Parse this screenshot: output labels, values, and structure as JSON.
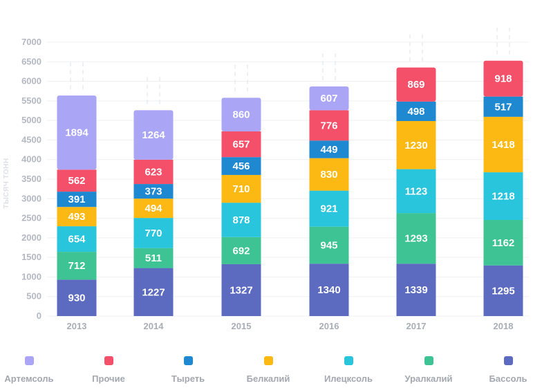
{
  "chart_data": {
    "type": "bar",
    "stacked": true,
    "ylabel": "ТЫСЯЧ ТОНН",
    "ylim": [
      0,
      7000
    ],
    "yticks": [
      0,
      500,
      1000,
      1500,
      2000,
      2500,
      3000,
      3500,
      4000,
      4500,
      5000,
      5500,
      6000,
      6500,
      7000
    ],
    "grid": true,
    "legend_position": "bottom",
    "categories": [
      "2013",
      "2014",
      "2015",
      "2016",
      "2017",
      "2018"
    ],
    "series": [
      {
        "name": "Бассоль",
        "color": "#5c6bc0",
        "values": [
          930,
          1227,
          1327,
          1340,
          1339,
          1295
        ]
      },
      {
        "name": "Уралкалий",
        "color": "#3dc394",
        "values": [
          712,
          511,
          692,
          945,
          1293,
          1162
        ]
      },
      {
        "name": "Илецксоль",
        "color": "#28c5dc",
        "values": [
          654,
          770,
          878,
          921,
          1123,
          1218
        ]
      },
      {
        "name": "Белкалий",
        "color": "#fdb913",
        "values": [
          493,
          494,
          710,
          830,
          1230,
          1418
        ]
      },
      {
        "name": "Тыреть",
        "color": "#1e88d0",
        "values": [
          391,
          373,
          456,
          449,
          498,
          517
        ]
      },
      {
        "name": "Прочие",
        "color": "#f4506a",
        "values": [
          562,
          623,
          657,
          776,
          869,
          918
        ]
      },
      {
        "name": "Артемсоль",
        "color": "#aaa5f5",
        "values": [
          1894,
          1264,
          860,
          607,
          null,
          null
        ]
      }
    ]
  },
  "legend": {
    "items": [
      {
        "label": "Артемсоль",
        "color": "#aaa5f5"
      },
      {
        "label": "Прочие",
        "color": "#f4506a"
      },
      {
        "label": "Тыреть",
        "color": "#1e88d0"
      },
      {
        "label": "Белкалий",
        "color": "#fdb913"
      },
      {
        "label": "Илецксоль",
        "color": "#28c5dc"
      },
      {
        "label": "Уралкалий",
        "color": "#3dc394"
      },
      {
        "label": "Бассоль",
        "color": "#5c6bc0"
      }
    ]
  }
}
